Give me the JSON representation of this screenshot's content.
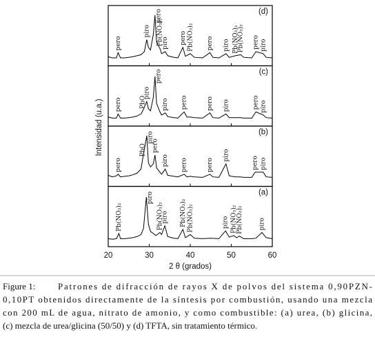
{
  "chart_data": {
    "type": "line",
    "xlabel": "2 θ (grados)",
    "ylabel": "Intensidad (u.a.)",
    "xlim": [
      20,
      60
    ],
    "xticks": [
      20,
      30,
      40,
      50,
      60
    ],
    "color": "#000000",
    "panels": [
      {
        "label": "(d)",
        "ylim": [
          0,
          100
        ],
        "x": [
          20,
          21,
          22,
          22.4,
          23,
          24,
          25,
          26,
          27,
          28,
          28.8,
          29.4,
          29.8,
          30.3,
          31,
          31.4,
          31.8,
          32.6,
          33,
          33.9,
          34.5,
          36,
          37,
          38.2,
          38.8,
          40,
          41,
          43,
          44.8,
          45.5,
          47,
          48.7,
          49.5,
          51,
          52.3,
          53,
          55,
          56,
          57.8,
          58.5,
          60
        ],
        "values": [
          12,
          10,
          10,
          20,
          10,
          10,
          11,
          12,
          14,
          16,
          22,
          45,
          30,
          25,
          55,
          92,
          40,
          28,
          18,
          22,
          14,
          11,
          10,
          30,
          13,
          18,
          11,
          10,
          20,
          11,
          10,
          18,
          11,
          14,
          16,
          11,
          10,
          22,
          18,
          11,
          10
        ],
        "annotations": [
          {
            "text": "pero",
            "x": 22.4
          },
          {
            "text": "piro",
            "x": 29.4
          },
          {
            "text": "pero",
            "x": 31.4
          },
          {
            "text": "Pb(NO₃)₂",
            "x": 32.6
          },
          {
            "text": "piro",
            "x": 33.9
          },
          {
            "text": "pero",
            "x": 38.2
          },
          {
            "text": "Pb(NO₃)₂",
            "x": 40
          },
          {
            "text": "pero",
            "x": 44.8
          },
          {
            "text": "piro",
            "x": 48.7
          },
          {
            "text": "Pb(NO₃)₂",
            "x": 51
          },
          {
            "text": "Pb(NO₃)₂",
            "x": 52.3
          },
          {
            "text": "pero",
            "x": 56
          },
          {
            "text": "piro",
            "x": 57.8
          }
        ]
      },
      {
        "label": "(c)",
        "ylim": [
          0,
          100
        ],
        "x": [
          20,
          21,
          22,
          22.4,
          23,
          24,
          25,
          26,
          27,
          28,
          28.4,
          29.4,
          29.8,
          30.3,
          31,
          31.4,
          31.8,
          32.6,
          33,
          33.9,
          34.5,
          36,
          37,
          38.5,
          39.2,
          40,
          41,
          43,
          44.8,
          45.5,
          47,
          48.7,
          49.5,
          51,
          52.3,
          53,
          55,
          56,
          57.8,
          58.5,
          60
        ],
        "values": [
          12,
          10,
          10,
          18,
          10,
          10,
          11,
          12,
          14,
          18,
          24,
          42,
          28,
          24,
          50,
          90,
          38,
          22,
          16,
          20,
          13,
          11,
          10,
          22,
          12,
          12,
          11,
          10,
          20,
          11,
          10,
          18,
          11,
          11,
          11,
          10,
          10,
          22,
          16,
          11,
          10
        ],
        "annotations": [
          {
            "text": "pero",
            "x": 22.4
          },
          {
            "text": "PbO",
            "x": 28.4
          },
          {
            "text": "piro",
            "x": 29.4
          },
          {
            "text": "pero",
            "x": 31.4
          },
          {
            "text": "piro",
            "x": 33.9
          },
          {
            "text": "pero",
            "x": 38.5
          },
          {
            "text": "pero",
            "x": 44.8
          },
          {
            "text": "piro",
            "x": 48.7
          },
          {
            "text": "pero",
            "x": 56
          },
          {
            "text": "piro",
            "x": 57.8
          }
        ]
      },
      {
        "label": "(b)",
        "ylim": [
          0,
          100
        ],
        "x": [
          20,
          21,
          22,
          22.4,
          23,
          24,
          25,
          26,
          27,
          28,
          28.4,
          29.4,
          29.8,
          30.3,
          31,
          31.4,
          31.8,
          32.6,
          33,
          33.9,
          34.5,
          36,
          37,
          38.5,
          39.2,
          40,
          41,
          43,
          44.8,
          45.5,
          47,
          48.7,
          49.5,
          51,
          52.3,
          53,
          55,
          55.8,
          57.8,
          58.5,
          60
        ],
        "values": [
          16,
          13,
          15,
          18,
          13,
          14,
          15,
          17,
          20,
          28,
          48,
          92,
          40,
          32,
          38,
          55,
          30,
          22,
          18,
          28,
          16,
          14,
          13,
          18,
          13,
          14,
          13,
          12,
          18,
          13,
          12,
          38,
          15,
          13,
          13,
          12,
          12,
          22,
          22,
          13,
          12
        ],
        "annotations": [
          {
            "text": "pero",
            "x": 22.4
          },
          {
            "text": "PbO",
            "x": 28.4
          },
          {
            "text": "piro",
            "x": 29.4
          },
          {
            "text": "pero",
            "x": 31.4
          },
          {
            "text": "piro",
            "x": 33.9
          },
          {
            "text": "pero",
            "x": 38.5
          },
          {
            "text": "pero",
            "x": 44.8
          },
          {
            "text": "piro",
            "x": 48.7
          },
          {
            "text": "pero",
            "x": 55.8
          },
          {
            "text": "piro",
            "x": 57.8
          }
        ]
      },
      {
        "label": "(a)",
        "ylim": [
          0,
          100
        ],
        "x": [
          20,
          21,
          22,
          22.6,
          23,
          24,
          25,
          26,
          27,
          28,
          28.6,
          29.3,
          29.8,
          30.3,
          31,
          31.6,
          32.6,
          33,
          33.8,
          34.5,
          36,
          37,
          38.2,
          38.8,
          40,
          41,
          43,
          45,
          47,
          48.6,
          49.5,
          50.6,
          51.3,
          52,
          53,
          55,
          56,
          57.5,
          58.5,
          60
        ],
        "values": [
          10,
          9,
          10,
          20,
          10,
          10,
          11,
          12,
          14,
          18,
          30,
          90,
          38,
          24,
          20,
          16,
          22,
          18,
          35,
          14,
          11,
          10,
          28,
          12,
          18,
          11,
          10,
          11,
          10,
          25,
          13,
          16,
          12,
          15,
          10,
          10,
          11,
          22,
          12,
          10
        ],
        "annotations": [
          {
            "text": "Pb(NO₃)₂",
            "x": 22.6
          },
          {
            "text": "piro",
            "x": 29.3
          },
          {
            "text": "Pb(NO₃)₂",
            "x": 32.6
          },
          {
            "text": "piro",
            "x": 33.8
          },
          {
            "text": "Pb(NO₃)₂",
            "x": 38.2
          },
          {
            "text": "Pb(NO₃)₂",
            "x": 40
          },
          {
            "text": "piro",
            "x": 48.6
          },
          {
            "text": "Pb(NO₃)₂",
            "x": 50.6
          },
          {
            "text": "Pb(NO₃)₂",
            "x": 52
          },
          {
            "text": "piro",
            "x": 57.5
          }
        ]
      }
    ]
  },
  "caption": {
    "label": "Figure 1:",
    "lines": [
      "Patrones de difracción de rayos X de polvos del sistema 0,90PZN-",
      "0,10PT obtenidos directamente de la síntesis por combustión, usando una mezcla",
      "con 200 mL de agua, nitrato de amonio, y como combustible: (a) urea, (b) glicina,",
      "(c) mezcla de urea/glicina (50/50) y (d) TFTA, sin tratamiento térmico."
    ]
  }
}
